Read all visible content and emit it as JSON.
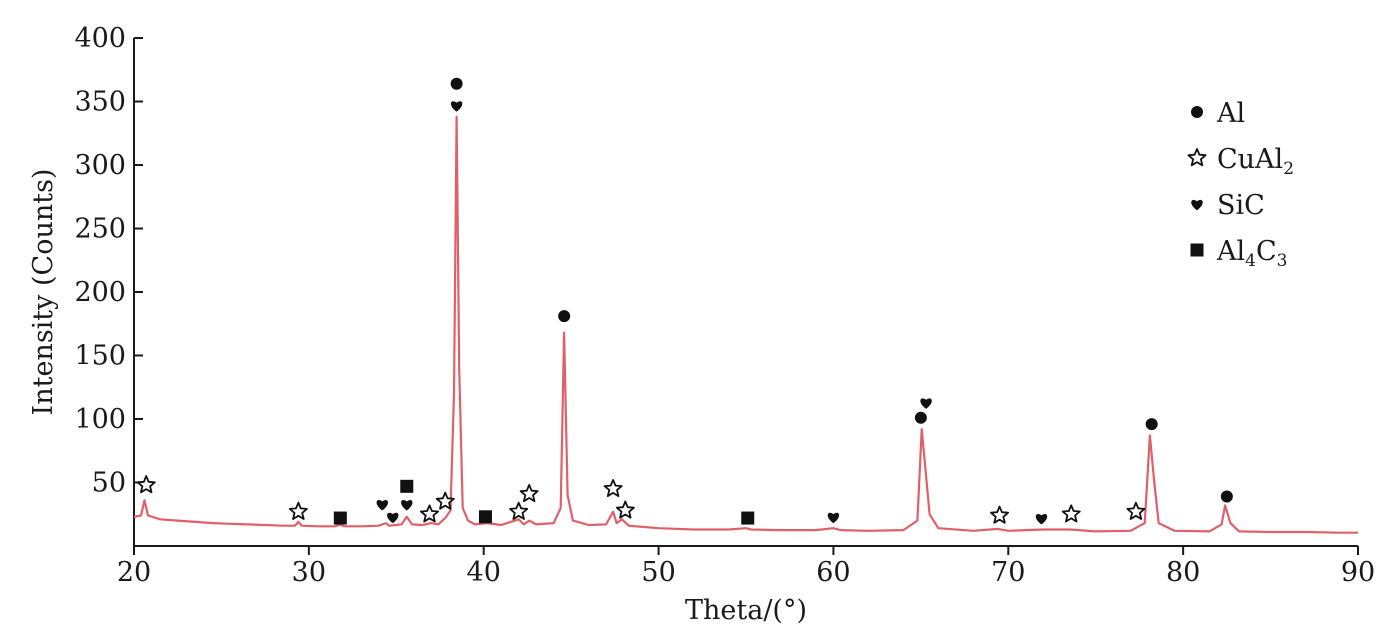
{
  "chart_data": {
    "type": "line",
    "title": "",
    "xlabel": "Theta/(°)",
    "ylabel": "Intensity (Counts)",
    "xlim": [
      20,
      90
    ],
    "ylim": [
      0,
      400
    ],
    "x_ticks": [
      20,
      30,
      40,
      50,
      60,
      70,
      80,
      90
    ],
    "y_ticks": [
      50,
      100,
      150,
      200,
      250,
      300,
      350,
      400
    ],
    "grid": false,
    "legend_position": "top-right",
    "line_color": "#e0606a",
    "series": [
      {
        "name": "",
        "points": [
          [
            20.0,
            23
          ],
          [
            20.4,
            24
          ],
          [
            20.6,
            36
          ],
          [
            20.8,
            24
          ],
          [
            21.5,
            21
          ],
          [
            22.5,
            20
          ],
          [
            23.5,
            19
          ],
          [
            24.5,
            18
          ],
          [
            25.5,
            17.5
          ],
          [
            26.5,
            17
          ],
          [
            27.5,
            16.5
          ],
          [
            28.5,
            16
          ],
          [
            29.2,
            16
          ],
          [
            29.4,
            19
          ],
          [
            29.6,
            16
          ],
          [
            30.5,
            15.5
          ],
          [
            31.5,
            15.5
          ],
          [
            31.8,
            17
          ],
          [
            32.0,
            15.5
          ],
          [
            33.0,
            15.5
          ],
          [
            34.0,
            16
          ],
          [
            34.4,
            18
          ],
          [
            34.6,
            16
          ],
          [
            35.3,
            17
          ],
          [
            35.6,
            23
          ],
          [
            35.9,
            17
          ],
          [
            36.5,
            16.5
          ],
          [
            37.0,
            18
          ],
          [
            37.4,
            17
          ],
          [
            37.8,
            22
          ],
          [
            38.1,
            28
          ],
          [
            38.3,
            120
          ],
          [
            38.45,
            338
          ],
          [
            38.6,
            140
          ],
          [
            38.8,
            30
          ],
          [
            39.1,
            20
          ],
          [
            39.5,
            17
          ],
          [
            40.2,
            18
          ],
          [
            41.0,
            16.5
          ],
          [
            42.0,
            21
          ],
          [
            42.3,
            17
          ],
          [
            42.6,
            20
          ],
          [
            43.0,
            17
          ],
          [
            44.0,
            18
          ],
          [
            44.4,
            30
          ],
          [
            44.6,
            168
          ],
          [
            44.8,
            40
          ],
          [
            45.1,
            20
          ],
          [
            46.0,
            16.5
          ],
          [
            47.0,
            17
          ],
          [
            47.4,
            27
          ],
          [
            47.6,
            18
          ],
          [
            47.9,
            21
          ],
          [
            48.3,
            16
          ],
          [
            50.0,
            14
          ],
          [
            52.0,
            13
          ],
          [
            54.0,
            13
          ],
          [
            55.0,
            14
          ],
          [
            55.3,
            13
          ],
          [
            57.0,
            12.5
          ],
          [
            59.0,
            12.5
          ],
          [
            60.0,
            14
          ],
          [
            60.4,
            12.5
          ],
          [
            62.0,
            12
          ],
          [
            64.0,
            12.5
          ],
          [
            64.8,
            20
          ],
          [
            65.05,
            92
          ],
          [
            65.3,
            55
          ],
          [
            65.5,
            25
          ],
          [
            66.0,
            14
          ],
          [
            68.0,
            12
          ],
          [
            69.4,
            13.5
          ],
          [
            70.0,
            12
          ],
          [
            72.0,
            13
          ],
          [
            73.5,
            13
          ],
          [
            75.0,
            11.5
          ],
          [
            77.0,
            12
          ],
          [
            77.8,
            18
          ],
          [
            78.1,
            87
          ],
          [
            78.35,
            50
          ],
          [
            78.6,
            18
          ],
          [
            79.5,
            12
          ],
          [
            81.5,
            11.5
          ],
          [
            82.2,
            17
          ],
          [
            82.4,
            32
          ],
          [
            82.7,
            18
          ],
          [
            83.2,
            11.5
          ],
          [
            85.0,
            11
          ],
          [
            87.0,
            11
          ],
          [
            89.0,
            10.5
          ],
          [
            90.0,
            10.5
          ]
        ]
      }
    ],
    "legend": [
      {
        "marker": "circle",
        "label": "Al",
        "sub": ""
      },
      {
        "marker": "star",
        "label": "CuAl",
        "sub": "2"
      },
      {
        "marker": "heart",
        "label": "SiC",
        "sub": ""
      },
      {
        "marker": "square",
        "label": "Al",
        "sub": "4",
        "label2": "C",
        "sub2": "3"
      }
    ],
    "annotations": [
      {
        "marker": "star",
        "x": 20.7,
        "y": 48
      },
      {
        "marker": "star",
        "x": 29.4,
        "y": 27
      },
      {
        "marker": "square",
        "x": 31.8,
        "y": 22
      },
      {
        "marker": "heart",
        "x": 34.2,
        "y": 33
      },
      {
        "marker": "heart",
        "x": 34.8,
        "y": 23
      },
      {
        "marker": "heart",
        "x": 35.6,
        "y": 33
      },
      {
        "marker": "square",
        "x": 35.6,
        "y": 47
      },
      {
        "marker": "star",
        "x": 36.9,
        "y": 25
      },
      {
        "marker": "star",
        "x": 37.8,
        "y": 35
      },
      {
        "marker": "circle",
        "x": 38.45,
        "y": 364
      },
      {
        "marker": "heart",
        "x": 38.45,
        "y": 347
      },
      {
        "marker": "square",
        "x": 40.1,
        "y": 23
      },
      {
        "marker": "star",
        "x": 42.0,
        "y": 27
      },
      {
        "marker": "star",
        "x": 42.6,
        "y": 41
      },
      {
        "marker": "circle",
        "x": 44.6,
        "y": 181
      },
      {
        "marker": "star",
        "x": 47.4,
        "y": 45
      },
      {
        "marker": "star",
        "x": 48.1,
        "y": 28
      },
      {
        "marker": "square",
        "x": 55.1,
        "y": 22
      },
      {
        "marker": "heart",
        "x": 60.0,
        "y": 23
      },
      {
        "marker": "circle",
        "x": 65.0,
        "y": 101
      },
      {
        "marker": "heart",
        "x": 65.3,
        "y": 113
      },
      {
        "marker": "star",
        "x": 69.5,
        "y": 24
      },
      {
        "marker": "heart",
        "x": 71.9,
        "y": 22
      },
      {
        "marker": "star",
        "x": 73.6,
        "y": 25
      },
      {
        "marker": "star",
        "x": 77.3,
        "y": 27
      },
      {
        "marker": "circle",
        "x": 78.2,
        "y": 96
      },
      {
        "marker": "circle",
        "x": 82.5,
        "y": 39
      }
    ]
  }
}
